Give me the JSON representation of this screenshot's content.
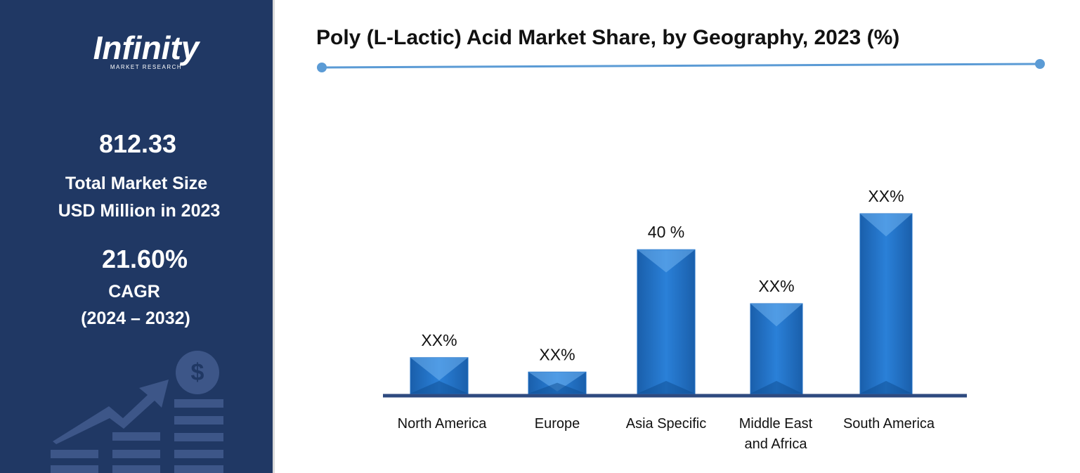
{
  "sidebar": {
    "logo": "Infinity",
    "logo_subtitle": "MARKET RESEARCH",
    "market_size": "812.33",
    "market_size_label_1": "Total Market Size",
    "market_size_label_2": "USD Million in 2023",
    "cagr": "21.60%",
    "cagr_label": "CAGR",
    "cagr_period": "(2024 – 2032)"
  },
  "chart_data": {
    "type": "bar",
    "title": "Poly (L-Lactic) Acid Market Share, by Geography, 2023 (%)",
    "categories": [
      "North America",
      "Europe",
      "Asia Specific",
      "Middle East and Africa",
      "South America"
    ],
    "values": [
      10,
      6,
      40,
      25,
      50
    ],
    "value_labels": [
      "XX%",
      "XX%",
      "40 %",
      "XX%",
      "XX%"
    ],
    "color": "#1f6fc5"
  }
}
